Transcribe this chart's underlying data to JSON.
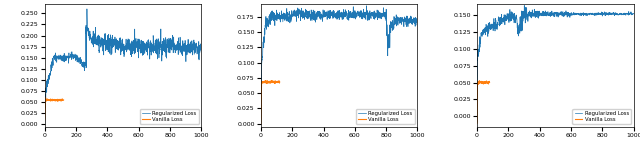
{
  "subplots": [
    {
      "ylim": [
        -0.005,
        0.27
      ],
      "yticks": [
        0.0,
        0.025,
        0.05,
        0.075,
        0.1,
        0.125,
        0.15,
        0.175,
        0.2,
        0.225,
        0.25
      ],
      "xlim": [
        0,
        1000
      ],
      "xticks": [
        0,
        200,
        400,
        600,
        800,
        1000
      ]
    },
    {
      "ylim": [
        -0.005,
        0.195
      ],
      "yticks": [
        0.0,
        0.025,
        0.05,
        0.075,
        0.1,
        0.125,
        0.15,
        0.175
      ],
      "xlim": [
        0,
        1000
      ],
      "xticks": [
        0,
        200,
        400,
        600,
        800,
        1000
      ]
    },
    {
      "ylim": [
        -0.015,
        0.165
      ],
      "yticks": [
        0.0,
        0.025,
        0.05,
        0.075,
        0.1,
        0.125,
        0.15
      ],
      "xlim": [
        0,
        1000
      ],
      "xticks": [
        0,
        200,
        400,
        600,
        800,
        1000
      ]
    }
  ],
  "blue_color": "#1f77b4",
  "orange_color": "#ff7f0e",
  "legend_labels": [
    "Regularized Loss",
    "Vanilla Loss"
  ],
  "figsize": [
    6.4,
    1.49
  ],
  "dpi": 100
}
